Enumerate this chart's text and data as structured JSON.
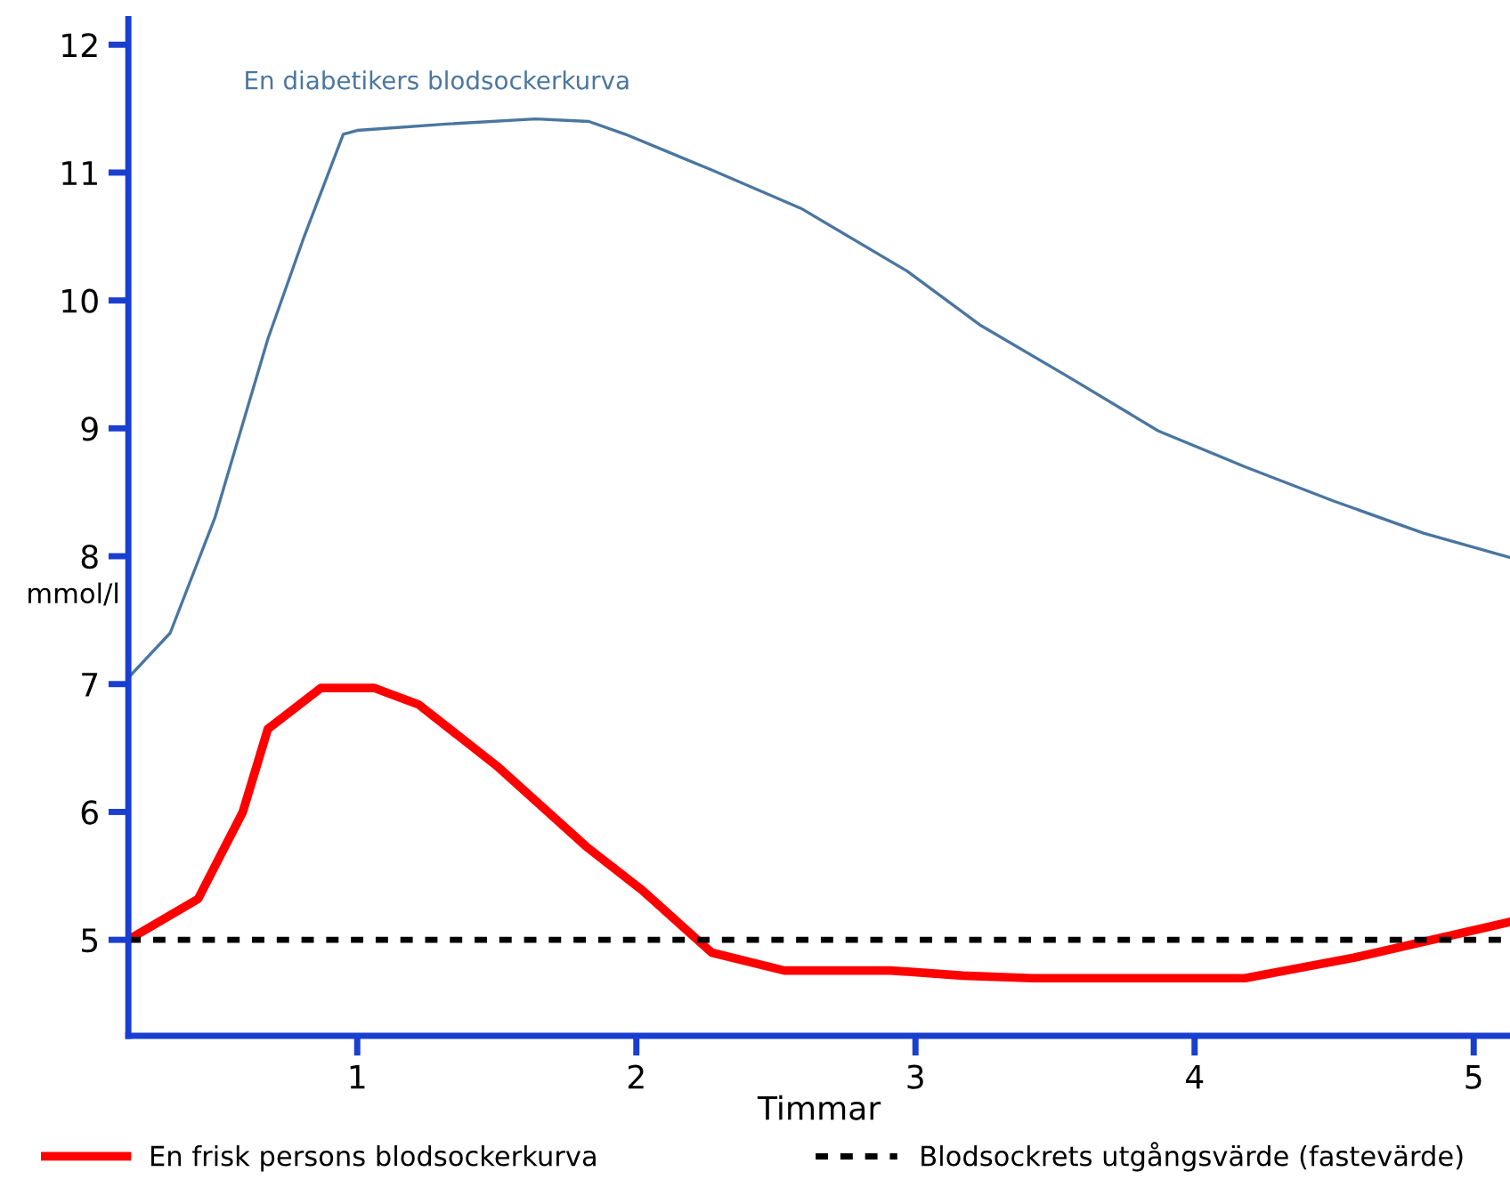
{
  "chart_data": {
    "type": "line",
    "xlabel": "Timmar",
    "ylabel": "mmol/l",
    "xlim": [
      0.18,
      5.13
    ],
    "ylim": [
      4.25,
      12.2
    ],
    "xticks": [
      1,
      2,
      3,
      4,
      5
    ],
    "yticks": [
      5,
      6,
      7,
      8,
      9,
      10,
      11,
      12
    ],
    "grid": false,
    "legend": "bottom",
    "marker": "none",
    "series": [
      {
        "name": "En diabetikers blodsockerkurva",
        "color": "#4a76a0",
        "line_style": "solid",
        "x": [
          0.18,
          0.33,
          0.49,
          0.68,
          0.81,
          0.95,
          1.0,
          1.32,
          1.64,
          1.83,
          1.96,
          2.27,
          2.59,
          2.97,
          3.23,
          3.55,
          3.87,
          4.18,
          4.5,
          4.82,
          5.13
        ],
        "values": [
          7.05,
          7.4,
          8.3,
          9.7,
          10.5,
          11.3,
          11.33,
          11.38,
          11.42,
          11.4,
          11.3,
          11.02,
          10.72,
          10.23,
          9.81,
          9.4,
          8.98,
          8.7,
          8.43,
          8.18,
          7.99
        ]
      },
      {
        "name": "En frisk persons blodsockerkurva",
        "color": "#ff0000",
        "line_style": "solid",
        "x": [
          0.18,
          0.43,
          0.59,
          0.68,
          0.87,
          1.06,
          1.22,
          1.5,
          1.82,
          2.02,
          2.27,
          2.53,
          2.91,
          3.17,
          3.42,
          4.18,
          4.57,
          5.13
        ],
        "values": [
          5.0,
          5.32,
          6.0,
          6.65,
          6.97,
          6.97,
          6.84,
          6.36,
          5.73,
          5.39,
          4.9,
          4.76,
          4.76,
          4.72,
          4.7,
          4.7,
          4.86,
          5.14
        ]
      }
    ],
    "ref_lines": [
      {
        "axis": "y",
        "value": 5,
        "label": "Blodsockrets utgångsvärde (fastevärde)",
        "color": "#000000",
        "line_style": "dotted"
      }
    ]
  }
}
